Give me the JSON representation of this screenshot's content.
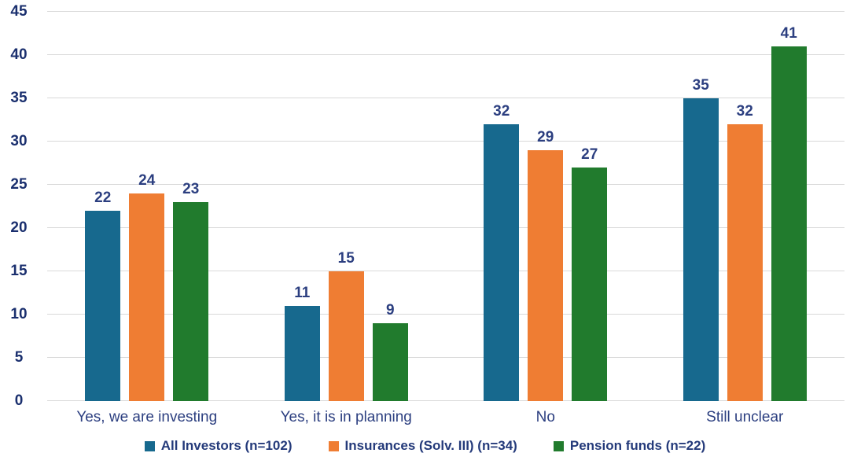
{
  "chart_data": {
    "type": "bar",
    "title": "",
    "xlabel": "",
    "ylabel": "",
    "categories": [
      "Yes, we are investing",
      "Yes, it is in planning",
      "No",
      "Still unclear"
    ],
    "series": [
      {
        "name": "All Investors (n=102)",
        "color": "#17698e",
        "values": [
          22,
          11,
          32,
          35
        ]
      },
      {
        "name": "Insurances (Solv. III) (n=34)",
        "color": "#ef7d33",
        "values": [
          24,
          15,
          29,
          32
        ]
      },
      {
        "name": "Pension funds (n=22)",
        "color": "#217b2d",
        "values": [
          23,
          9,
          27,
          41
        ]
      }
    ],
    "ylim": [
      0,
      45
    ],
    "y_ticks": [
      0,
      5,
      10,
      15,
      20,
      25,
      30,
      35,
      40,
      45
    ],
    "grid": "horizontal",
    "legend_position": "bottom",
    "data_labels": true
  },
  "colors": {
    "background": "#ffffff",
    "gridline": "#d9d9d9",
    "axis_tick_text": "#1a2f6e",
    "data_label_text": "#2c3f80",
    "category_label_text": "#2c3f80",
    "legend_text": "#243a7a"
  }
}
